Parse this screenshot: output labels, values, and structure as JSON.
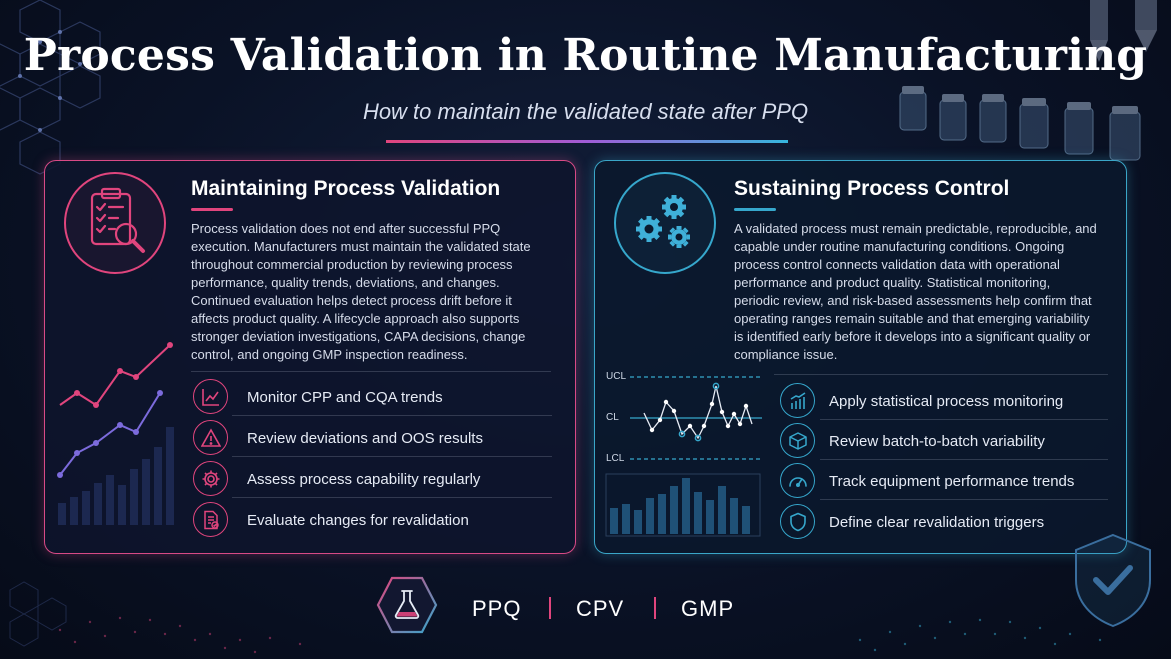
{
  "header": {
    "title": "Process Validation in Routine Manufacturing",
    "subtitle": "How to maintain the validated state after PPQ"
  },
  "left_panel": {
    "title": "Maintaining Process Validation",
    "icon": "clipboard-magnifier-icon",
    "body": "Process validation does not end after successful PPQ execution. Manufacturers must maintain the validated state throughout commercial production by reviewing process performance, quality trends, deviations, and changes. Continued evaluation helps detect process drift before it affects product quality. A lifecycle approach also supports stronger deviation investigations, CAPA decisions, change control, and ongoing GMP inspection readiness.",
    "items": [
      {
        "label": "Monitor CPP and CQA trends",
        "icon": "trend-chart-icon"
      },
      {
        "label": "Review deviations and OOS results",
        "icon": "warning-triangle-icon"
      },
      {
        "label": "Assess process capability regularly",
        "icon": "gear-icon"
      },
      {
        "label": "Evaluate changes for revalidation",
        "icon": "document-check-icon"
      }
    ]
  },
  "right_panel": {
    "title": "Sustaining Process Control",
    "icon": "gears-icon",
    "body": "A validated process must remain predictable, reproducible, and capable under routine manufacturing conditions. Ongoing process control connects validation data with operational performance and product quality. Statistical monitoring, periodic review, and risk-based assessments help confirm that operating ranges remain suitable and that emerging variability is identified early before it develops into a significant quality or compliance issue.",
    "control_chart_labels": {
      "ucl": "UCL",
      "cl": "CL",
      "lcl": "LCL"
    },
    "items": [
      {
        "label": "Apply statistical process monitoring",
        "icon": "bar-chart-up-icon"
      },
      {
        "label": "Review batch-to-batch variability",
        "icon": "cube-icon"
      },
      {
        "label": "Track equipment performance trends",
        "icon": "gauge-icon"
      },
      {
        "label": "Define clear revalidation triggers",
        "icon": "shield-icon"
      }
    ]
  },
  "footer": {
    "icon": "flask-icon",
    "tags": [
      "PPQ",
      "CPV",
      "GMP"
    ]
  },
  "colors": {
    "pink_accent": "#e0457d",
    "blue_accent": "#36a7cc",
    "background": "#0a1226"
  }
}
